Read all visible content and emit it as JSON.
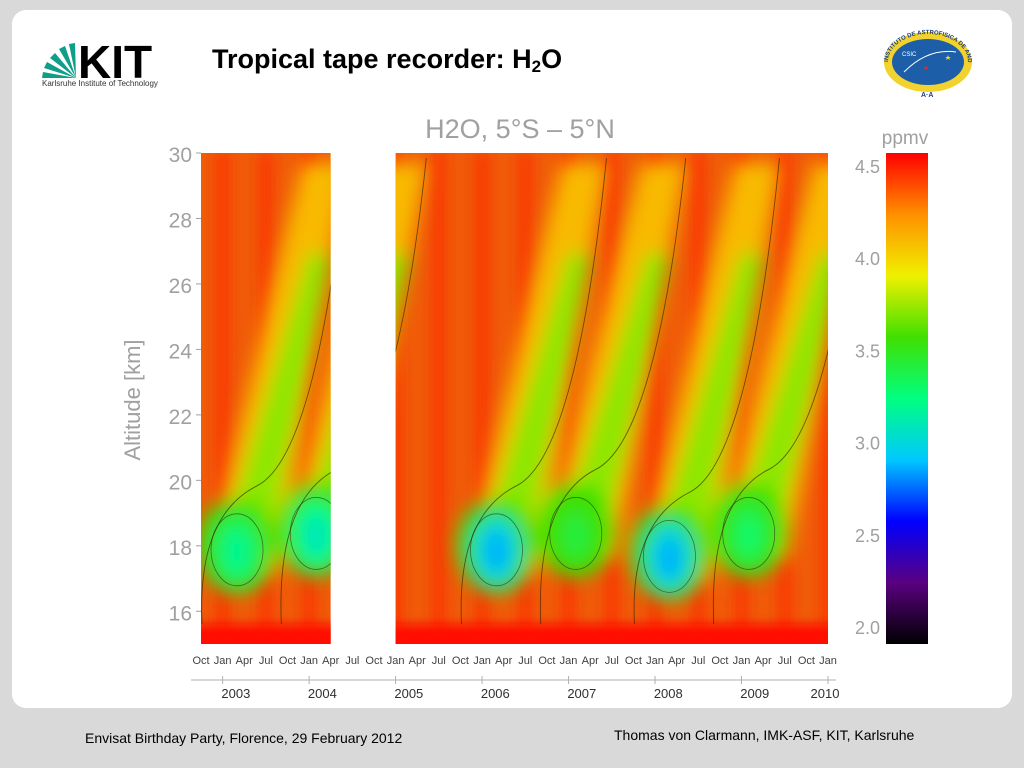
{
  "slide": {
    "title_main": "Tropical tape recorder: H",
    "title_sub": "2",
    "title_end": "O",
    "logo_text": "KIT",
    "logo_subtitle": "Karlsruhe Institute of Technology",
    "seal_text": "INSTITUTO DE ASTROFISICA DE ANDALUCIA",
    "seal_badge": "CSIC",
    "seal_bottom": "A·A",
    "footer_left": "Envisat Birthday Party, Florence, 29 February 2012",
    "footer_right": "Thomas von Clarmann, IMK-ASF, KIT, Karlsruhe"
  },
  "chart_data": {
    "type": "heatmap",
    "title": "H2O, 5°S – 5°N",
    "ylabel": "Altitude [km]",
    "xlabel": "",
    "colorbar_label": "ppmv",
    "ylim": [
      15,
      30
    ],
    "yticks": [
      16,
      18,
      20,
      22,
      24,
      26,
      28,
      30
    ],
    "colorbar_range": [
      2.0,
      4.5
    ],
    "colorbar_ticks": [
      "2.0",
      "2.5",
      "3.0",
      "3.5",
      "4.0",
      "4.5"
    ],
    "x_month_labels": [
      "Oct",
      "Jan",
      "Apr",
      "Jul",
      "Oct",
      "Jan",
      "Apr",
      "Jul",
      "Oct",
      "Jan",
      "Apr",
      "Jul",
      "Oct",
      "Jan",
      "Apr",
      "Jul",
      "Oct",
      "Jan",
      "Apr",
      "Jul",
      "Oct",
      "Jan",
      "Apr",
      "Jul",
      "Oct",
      "Jan",
      "Apr",
      "Jul",
      "Oct",
      "Jan"
    ],
    "x_year_labels": [
      "2003",
      "2004",
      "2005",
      "2006",
      "2007",
      "2008",
      "2009",
      "2010"
    ],
    "xlim": [
      "2002-10",
      "2010-01"
    ],
    "data_gap": [
      "2004-04",
      "2005-01"
    ],
    "colormap": [
      "#000000",
      "#5a0080",
      "#0000ff",
      "#00c8ff",
      "#00ff80",
      "#40e000",
      "#f0f000",
      "#ff9000",
      "#ff0000"
    ],
    "dry_minima": [
      {
        "time": "2003-03",
        "alt_km": 18.0,
        "h2o_ppmv": 3.2
      },
      {
        "time": "2004-02",
        "alt_km": 18.5,
        "h2o_ppmv": 3.1
      },
      {
        "time": "2006-03",
        "alt_km": 18.0,
        "h2o_ppmv": 2.9
      },
      {
        "time": "2007-02",
        "alt_km": 18.5,
        "h2o_ppmv": 3.4
      },
      {
        "time": "2008-03",
        "alt_km": 17.8,
        "h2o_ppmv": 2.9
      },
      {
        "time": "2009-02",
        "alt_km": 18.5,
        "h2o_ppmv": 3.3
      }
    ],
    "grid": false
  }
}
